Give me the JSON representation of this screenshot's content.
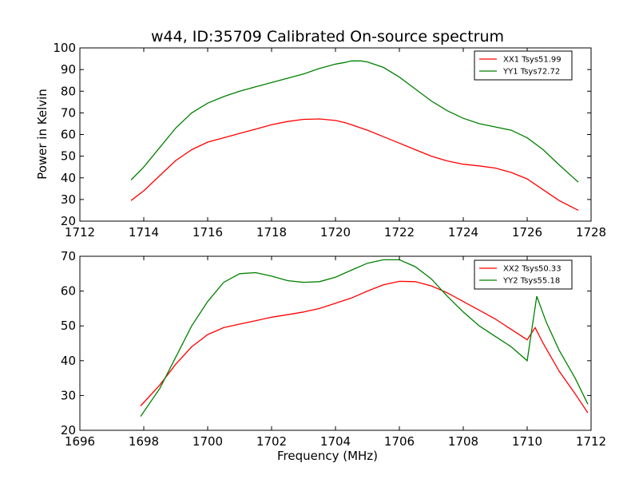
{
  "chart_data": [
    {
      "type": "line",
      "title": "w44, ID:35709 Calibrated On-source spectrum",
      "xlabel": "",
      "ylabel": "Power in Kelvin",
      "xlim": [
        1712,
        1728
      ],
      "ylim": [
        20,
        100
      ],
      "xticks": [
        "1712",
        "1714",
        "1716",
        "1718",
        "1720",
        "1722",
        "1724",
        "1726",
        "1728"
      ],
      "yticks": [
        "20",
        "30",
        "40",
        "50",
        "60",
        "70",
        "80",
        "90",
        "100"
      ],
      "grid": false,
      "legend_position": "top-right",
      "series": [
        {
          "name": "XX1 Tsys51.99",
          "color": "#ff0000",
          "x": [
            1713.6,
            1714.0,
            1714.5,
            1715.0,
            1715.5,
            1716.0,
            1716.5,
            1717.0,
            1717.5,
            1718.0,
            1718.5,
            1719.0,
            1719.5,
            1720.0,
            1720.3,
            1720.5,
            1721.0,
            1721.5,
            1722.0,
            1722.5,
            1723.0,
            1723.5,
            1724.0,
            1724.5,
            1725.0,
            1725.5,
            1726.0,
            1726.5,
            1727.0,
            1727.6
          ],
          "values": [
            29.5,
            34,
            41,
            48,
            53,
            56.5,
            58.5,
            60.5,
            62.5,
            64.5,
            66,
            67,
            67.2,
            66.5,
            65.5,
            64.5,
            62,
            59,
            56,
            53,
            50,
            47.8,
            46.3,
            45.5,
            44.5,
            42.5,
            39.5,
            34.5,
            29.5,
            25
          ]
        },
        {
          "name": "YY1 Tsys72.72",
          "color": "#008000",
          "x": [
            1713.6,
            1714.0,
            1714.5,
            1715.0,
            1715.5,
            1716.0,
            1716.5,
            1717.0,
            1717.5,
            1718.0,
            1718.5,
            1719.0,
            1719.5,
            1720.0,
            1720.3,
            1720.5,
            1720.8,
            1721.0,
            1721.5,
            1722.0,
            1722.5,
            1723.0,
            1723.5,
            1724.0,
            1724.5,
            1725.0,
            1725.5,
            1726.0,
            1726.5,
            1727.0,
            1727.6
          ],
          "values": [
            39,
            45,
            54,
            63,
            70,
            74.5,
            77.5,
            80,
            82,
            84,
            86,
            88,
            90.5,
            92.5,
            93.3,
            94,
            94,
            93.5,
            91,
            86.5,
            81,
            75.5,
            71,
            67.5,
            65,
            63.5,
            62,
            58.5,
            53,
            46,
            38
          ]
        }
      ]
    },
    {
      "type": "line",
      "title": "",
      "xlabel": "Frequency (MHz)",
      "ylabel": "",
      "xlim": [
        1696,
        1712
      ],
      "ylim": [
        20,
        70
      ],
      "xticks": [
        "1696",
        "1698",
        "1700",
        "1702",
        "1704",
        "1706",
        "1708",
        "1710",
        "1712"
      ],
      "yticks": [
        "20",
        "30",
        "40",
        "50",
        "60",
        "70"
      ],
      "grid": false,
      "legend_position": "top-right",
      "series": [
        {
          "name": "XX2 Tsys50.33",
          "color": "#ff0000",
          "x": [
            1697.9,
            1698.5,
            1699.0,
            1699.5,
            1700.0,
            1700.5,
            1701.0,
            1701.5,
            1702.0,
            1702.5,
            1703.0,
            1703.5,
            1704.0,
            1704.5,
            1705.0,
            1705.5,
            1706.0,
            1706.5,
            1707.0,
            1707.5,
            1708.0,
            1708.5,
            1709.0,
            1709.5,
            1710.0,
            1710.25,
            1710.5,
            1711.0,
            1711.5,
            1711.9
          ],
          "values": [
            27,
            33,
            39,
            44,
            47.5,
            49.5,
            50.5,
            51.5,
            52.5,
            53.2,
            54,
            55,
            56.5,
            58,
            60,
            61.8,
            62.8,
            62.7,
            61.5,
            59.5,
            57,
            54.5,
            52,
            49,
            46,
            49.5,
            45,
            37,
            30.5,
            25
          ]
        },
        {
          "name": "YY2 Tsys55.18",
          "color": "#008000",
          "x": [
            1697.9,
            1698.5,
            1699.0,
            1699.5,
            1700.0,
            1700.5,
            1701.0,
            1701.5,
            1702.0,
            1702.5,
            1703.0,
            1703.5,
            1704.0,
            1704.5,
            1705.0,
            1705.5,
            1706.0,
            1706.5,
            1707.0,
            1707.5,
            1708.0,
            1708.5,
            1709.0,
            1709.5,
            1710.0,
            1710.3,
            1710.6,
            1711.0,
            1711.5,
            1711.9
          ],
          "values": [
            24,
            32,
            41,
            50,
            57,
            62.5,
            65,
            65.3,
            64.3,
            63,
            62.5,
            62.7,
            64,
            66,
            68,
            69,
            69,
            67,
            63.5,
            58.5,
            54,
            50,
            47,
            44,
            40,
            58.5,
            51,
            43,
            35,
            27.5
          ]
        }
      ]
    }
  ]
}
